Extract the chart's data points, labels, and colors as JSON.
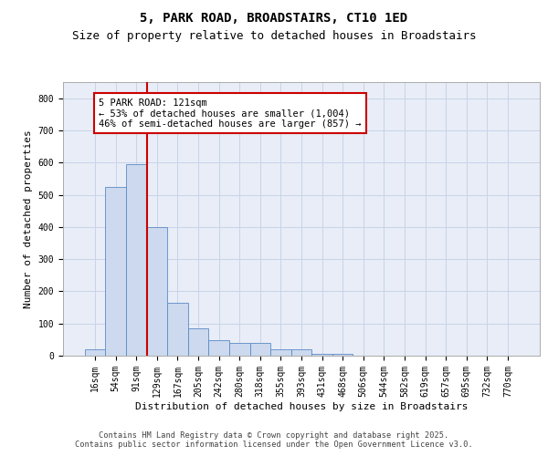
{
  "title_line1": "5, PARK ROAD, BROADSTAIRS, CT10 1ED",
  "title_line2": "Size of property relative to detached houses in Broadstairs",
  "xlabel": "Distribution of detached houses by size in Broadstairs",
  "ylabel": "Number of detached properties",
  "categories": [
    "16sqm",
    "54sqm",
    "91sqm",
    "129sqm",
    "167sqm",
    "205sqm",
    "242sqm",
    "280sqm",
    "318sqm",
    "355sqm",
    "393sqm",
    "431sqm",
    "468sqm",
    "506sqm",
    "544sqm",
    "582sqm",
    "619sqm",
    "657sqm",
    "695sqm",
    "732sqm",
    "770sqm"
  ],
  "values": [
    20,
    525,
    595,
    400,
    163,
    85,
    48,
    40,
    40,
    20,
    20,
    5,
    5,
    0,
    0,
    0,
    0,
    0,
    0,
    0,
    0
  ],
  "bar_color": "#ccd9ee",
  "bar_edge_color": "#5b8ac5",
  "vline_x": 2.5,
  "vline_color": "#cc0000",
  "annotation_text": "5 PARK ROAD: 121sqm\n← 53% of detached houses are smaller (1,004)\n46% of semi-detached houses are larger (857) →",
  "annotation_box_edgecolor": "#cc0000",
  "ylim_max": 850,
  "yticks": [
    0,
    100,
    200,
    300,
    400,
    500,
    600,
    700,
    800
  ],
  "grid_color": "#c8d4e8",
  "bg_color": "#e8edf7",
  "footer_line1": "Contains HM Land Registry data © Crown copyright and database right 2025.",
  "footer_line2": "Contains public sector information licensed under the Open Government Licence v3.0.",
  "title_fontsize": 10,
  "subtitle_fontsize": 9,
  "axis_label_fontsize": 8,
  "tick_fontsize": 7,
  "annotation_fontsize": 7.5,
  "footer_fontsize": 6.2
}
